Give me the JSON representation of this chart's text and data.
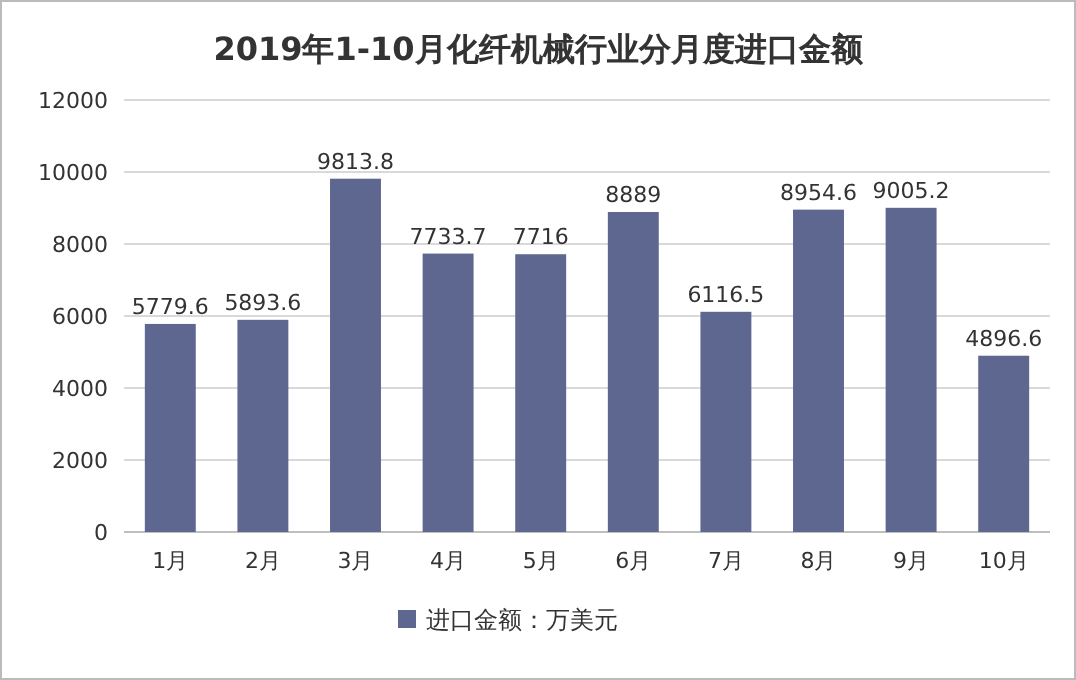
{
  "chart_data": {
    "type": "bar",
    "title": "2019年1-10月化纤机械行业分月度进口金额",
    "categories": [
      "1月",
      "2月",
      "3月",
      "4月",
      "5月",
      "6月",
      "7月",
      "8月",
      "9月",
      "10月"
    ],
    "series": [
      {
        "name": "进口金额：万美元",
        "color": "#5d6790",
        "values": [
          5779.6,
          5893.6,
          9813.8,
          7733.7,
          7716,
          8889,
          6116.5,
          8954.6,
          9005.2,
          4896.6
        ]
      }
    ],
    "ylim": [
      0,
      12000
    ],
    "yticks": [
      0,
      2000,
      4000,
      6000,
      8000,
      10000,
      12000
    ],
    "grid": "y",
    "legend": "bottom",
    "data_labels": true
  }
}
